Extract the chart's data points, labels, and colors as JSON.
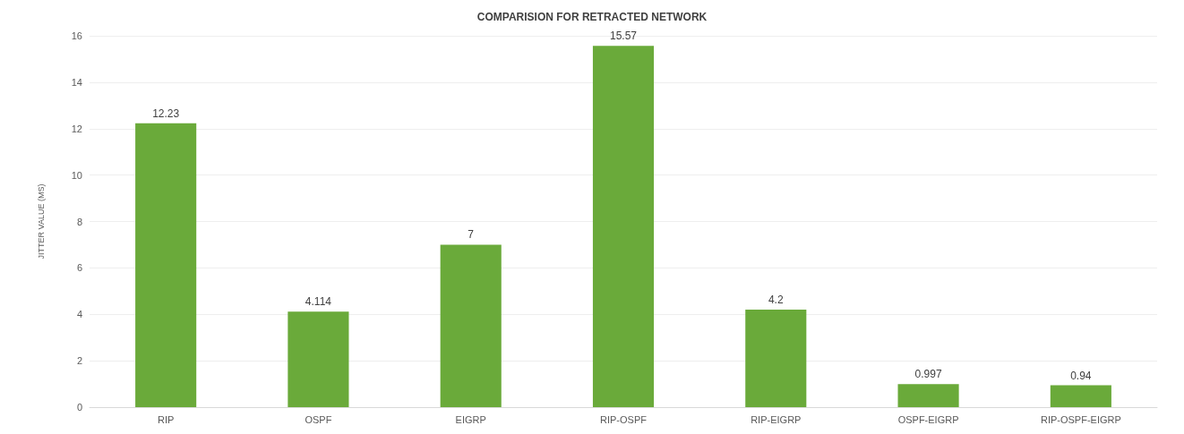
{
  "chart_data": {
    "type": "bar",
    "title": "COMPARISION FOR RETRACTED NETWORK",
    "ylabel": "JITTER VALUE (MS)",
    "categories": [
      "RIP",
      "OSPF",
      "EIGRP",
      "RIP-OSPF",
      "RIP-EIGRP",
      "OSPF-EIGRP",
      "RIP-OSPF-EIGRP"
    ],
    "values": [
      12.23,
      4.114,
      7,
      15.57,
      4.2,
      0.997,
      0.94
    ],
    "color": "#6aaa3a",
    "ylim": [
      0,
      16
    ],
    "yticks": [
      0,
      2,
      4,
      6,
      8,
      10,
      12,
      14,
      16
    ],
    "grid": "y",
    "data_labels": true
  }
}
